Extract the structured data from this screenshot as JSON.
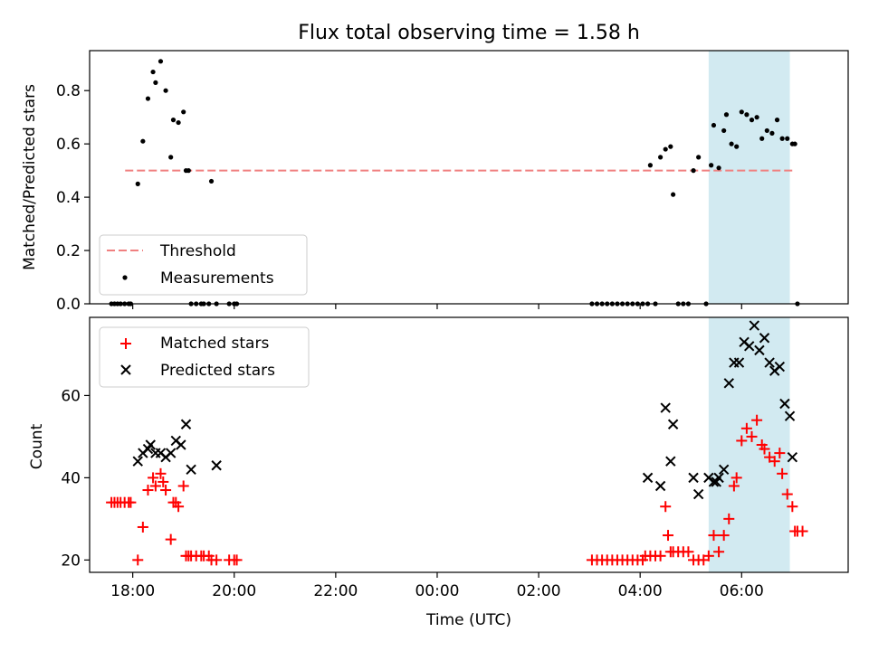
{
  "figure": {
    "title": "Flux total observing time = 1.58 h",
    "xlabel": "Time (UTC)",
    "x_tick_labels": [
      "18:00",
      "20:00",
      "22:00",
      "00:00",
      "02:00",
      "04:00",
      "06:00"
    ],
    "colors": {
      "threshold": "#f08080",
      "measurements": "#000000",
      "matched": "#ff0000",
      "predicted": "#000000",
      "shade": "#add8e6"
    }
  },
  "chart_data": [
    {
      "type": "scatter",
      "ylabel": "Matched/Predicted stars",
      "xlim_hours": [
        17.15,
        32.1
      ],
      "ylim": [
        0,
        0.95
      ],
      "y_ticks": [
        "0.0",
        "0.2",
        "0.4",
        "0.6",
        "0.8"
      ],
      "y_tick_values": [
        0,
        0.2,
        0.4,
        0.6,
        0.8
      ],
      "shaded_span_hours": [
        29.35,
        30.95
      ],
      "legend": {
        "placement": "lower-left",
        "entries": [
          "Threshold",
          "Measurements"
        ]
      },
      "threshold": {
        "name": "Threshold",
        "value": 0.5,
        "x_range_hours": [
          17.85,
          31.0
        ]
      },
      "series": [
        {
          "name": "Measurements",
          "x_hours": [
            17.58,
            17.64,
            17.7,
            17.76,
            17.84,
            17.92,
            17.96,
            18.1,
            18.2,
            18.3,
            18.4,
            18.45,
            18.55,
            18.65,
            18.75,
            18.8,
            18.9,
            19.0,
            19.05,
            19.1,
            19.15,
            19.25,
            19.35,
            19.4,
            19.5,
            19.55,
            19.65,
            19.9,
            20.0,
            20.05,
            27.05,
            27.15,
            27.25,
            27.35,
            27.45,
            27.55,
            27.65,
            27.75,
            27.85,
            27.95,
            28.05,
            28.15,
            28.2,
            28.3,
            28.4,
            28.5,
            28.6,
            28.65,
            28.75,
            28.85,
            28.95,
            29.05,
            29.15,
            29.3,
            29.4,
            29.45,
            29.55,
            29.65,
            29.7,
            29.8,
            29.9,
            30.0,
            30.1,
            30.2,
            30.3,
            30.4,
            30.5,
            30.6,
            30.7,
            30.8,
            30.9,
            31.0,
            31.05,
            31.1
          ],
          "y": [
            0,
            0,
            0,
            0,
            0,
            0,
            0,
            0.45,
            0.61,
            0.77,
            0.87,
            0.83,
            0.91,
            0.8,
            0.55,
            0.69,
            0.68,
            0.72,
            0.5,
            0.5,
            0,
            0,
            0,
            0,
            0,
            0.46,
            0,
            0,
            0,
            0,
            0,
            0,
            0,
            0,
            0,
            0,
            0,
            0,
            0,
            0,
            0,
            0,
            0.52,
            0,
            0.55,
            0.58,
            0.59,
            0.41,
            0,
            0,
            0,
            0.5,
            0.55,
            0,
            0.52,
            0.67,
            0.51,
            0.65,
            0.71,
            0.6,
            0.59,
            0.72,
            0.71,
            0.69,
            0.7,
            0.62,
            0.65,
            0.64,
            0.69,
            0.62,
            0.62,
            0.6,
            0.6,
            0
          ]
        }
      ]
    },
    {
      "type": "scatter",
      "ylabel": "Count",
      "xlim_hours": [
        17.15,
        32.1
      ],
      "ylim": [
        17,
        79
      ],
      "y_ticks": [
        "20",
        "40",
        "60"
      ],
      "y_tick_values": [
        20,
        40,
        60
      ],
      "shaded_span_hours": [
        29.35,
        30.95
      ],
      "legend": {
        "placement": "top-left",
        "entries": [
          "Matched stars",
          "Predicted stars"
        ]
      },
      "series": [
        {
          "name": "Matched stars",
          "marker": "plus",
          "x_hours": [
            17.58,
            17.64,
            17.7,
            17.76,
            17.84,
            17.92,
            17.96,
            18.1,
            18.2,
            18.3,
            18.4,
            18.45,
            18.55,
            18.6,
            18.65,
            18.75,
            18.8,
            18.85,
            18.9,
            19.0,
            19.05,
            19.1,
            19.15,
            19.25,
            19.35,
            19.4,
            19.5,
            19.55,
            19.65,
            19.9,
            20.0,
            20.05,
            27.05,
            27.15,
            27.25,
            27.35,
            27.45,
            27.55,
            27.65,
            27.75,
            27.85,
            27.95,
            28.05,
            28.1,
            28.2,
            28.3,
            28.4,
            28.5,
            28.55,
            28.6,
            28.65,
            28.75,
            28.85,
            28.95,
            29.05,
            29.15,
            29.25,
            29.35,
            29.45,
            29.55,
            29.65,
            29.75,
            29.85,
            29.9,
            30.0,
            30.1,
            30.2,
            30.3,
            30.4,
            30.45,
            30.55,
            30.65,
            30.75,
            30.8,
            30.9,
            31.0,
            31.05,
            31.1,
            31.2
          ],
          "y": [
            34,
            34,
            34,
            34,
            34,
            34,
            34,
            20,
            28,
            37,
            40,
            38,
            41,
            39,
            37,
            25,
            34,
            34,
            33,
            38,
            21,
            21,
            21,
            21,
            21,
            21,
            21,
            20,
            20,
            20,
            20,
            20,
            20,
            20,
            20,
            20,
            20,
            20,
            20,
            20,
            20,
            20,
            20,
            21,
            21,
            21,
            21,
            33,
            26,
            22,
            22,
            22,
            22,
            22,
            20,
            20,
            20,
            21,
            26,
            22,
            26,
            30,
            38,
            40,
            49,
            52,
            50,
            54,
            48,
            47,
            45,
            44,
            46,
            41,
            36,
            33,
            27,
            27,
            27
          ]
        },
        {
          "name": "Predicted stars",
          "marker": "x",
          "x_hours": [
            18.1,
            18.2,
            18.3,
            18.35,
            18.45,
            18.55,
            18.65,
            18.75,
            18.85,
            18.95,
            19.05,
            19.15,
            19.65,
            28.15,
            28.4,
            28.5,
            28.6,
            28.65,
            29.05,
            29.15,
            29.35,
            29.45,
            29.5,
            29.55,
            29.65,
            29.75,
            29.85,
            29.95,
            30.05,
            30.15,
            30.25,
            30.35,
            30.45,
            30.55,
            30.65,
            30.75,
            30.85,
            30.95,
            31.0
          ],
          "y": [
            44,
            46,
            47,
            48,
            46,
            46,
            45,
            46,
            49,
            48,
            53,
            42,
            43,
            40,
            38,
            57,
            44,
            53,
            40,
            36,
            40,
            39,
            39,
            40,
            42,
            63,
            68,
            68,
            73,
            72,
            77,
            71,
            74,
            68,
            66,
            67,
            58,
            55,
            45
          ]
        }
      ]
    }
  ]
}
